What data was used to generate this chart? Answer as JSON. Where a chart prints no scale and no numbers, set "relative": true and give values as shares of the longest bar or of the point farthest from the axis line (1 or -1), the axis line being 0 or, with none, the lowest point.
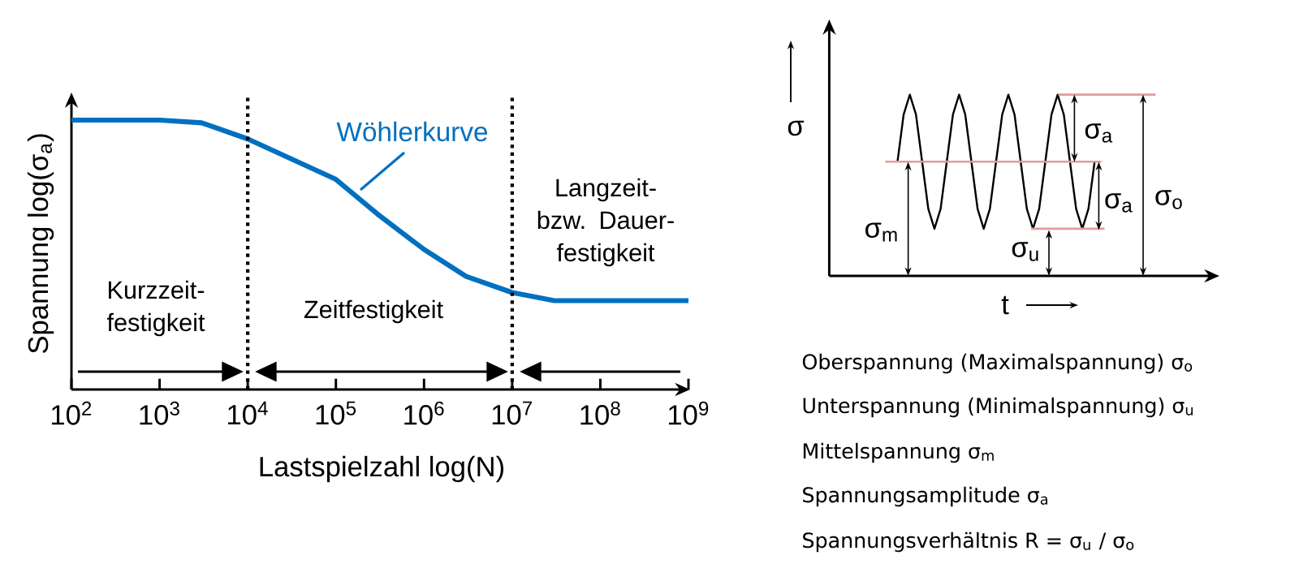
{
  "chart_data": [
    {
      "type": "line",
      "xlabel": "Lastspielzahl log(N)",
      "ylabel": "Spannung log(σ$_{a}$)",
      "log": "x",
      "relative": true,
      "xlim": [
        100,
        1000000000
      ],
      "xticks": [
        {
          "value": 100,
          "label": "10$^{2}$"
        },
        {
          "value": 1000,
          "label": "10$^{3}$"
        },
        {
          "value": 10000,
          "label": "10$^{4}$"
        },
        {
          "value": 100000,
          "label": "10$^{5}$"
        },
        {
          "value": 1000000,
          "label": "10$^{6}$"
        },
        {
          "value": 10000000,
          "label": "10$^{7}$"
        },
        {
          "value": 100000000,
          "label": "10$^{8}$"
        },
        {
          "value": 1000000000,
          "label": "10$^{9}$"
        }
      ],
      "series": [
        {
          "name": "Wöhlerkurve",
          "color": "#0070c0",
          "x": [
            100,
            1000,
            3000,
            10000,
            100000,
            300000,
            1000000,
            3000000,
            10000000,
            30000000,
            100000000,
            1000000000
          ],
          "values": [
            1,
            1,
            0.99,
            0.93,
            0.78,
            0.65,
            0.52,
            0.42,
            0.36,
            0.33,
            0.33,
            0.33
          ]
        }
      ],
      "ref_lines": [
        {
          "axis": "x",
          "value": 10000,
          "line_style": "dotted",
          "color": "#000000"
        },
        {
          "axis": "x",
          "value": 10000000,
          "line_style": "dotted",
          "color": "#000000"
        }
      ],
      "annotations": [
        "Kurzzeit-festigkeit",
        "Zeitfestigkeit",
        "Langzeit- bzw. Dauer-festigkeit"
      ]
    },
    {
      "type": "line",
      "xlabel": "t",
      "ylabel": "σ",
      "relative": true,
      "categories": [
        null,
        null,
        null,
        null,
        null,
        null,
        null,
        null,
        null,
        null,
        null,
        null,
        null,
        null,
        null,
        null,
        null,
        null,
        null,
        null,
        null,
        null,
        null,
        null,
        null,
        null,
        null,
        null,
        null,
        null,
        null,
        null,
        null
      ],
      "series": [
        {
          "color": "#000000",
          "values": [
            0.63,
            0.89,
            1,
            0.89,
            0.63,
            0.37,
            0.26,
            0.37,
            0.63,
            0.89,
            1,
            0.89,
            0.63,
            0.37,
            0.26,
            0.37,
            0.63,
            0.89,
            1,
            0.89,
            0.63,
            0.37,
            0.26,
            0.37,
            0.63,
            0.89,
            1,
            0.89,
            0.63,
            0.37,
            0.26,
            0.37,
            0.63
          ]
        }
      ],
      "ref_lines": [
        {
          "axis": "y",
          "value": 1,
          "color": "#e39a9a"
        },
        {
          "axis": "y",
          "value": 0.63,
          "color": "#e39a9a"
        },
        {
          "axis": "y",
          "value": 0.26,
          "color": "#e39a9a"
        }
      ],
      "annotations": [
        "σ$_{a}$",
        "σ$_{a}$",
        "σ$_{o}$",
        "σ$_{m}$",
        "σ$_{u}$",
        "Oberspannung (Maximalspannung) σ$_{o}$",
        "Unterspannung (Minimalspannung) σ$_{u}$",
        "Mittelspannung σ$_{m}$",
        "Spannungsamplitude σ$_{a}$",
        "Spannungsverhältnis R = σ$_{u}$ / σ$_{o}$"
      ]
    }
  ]
}
